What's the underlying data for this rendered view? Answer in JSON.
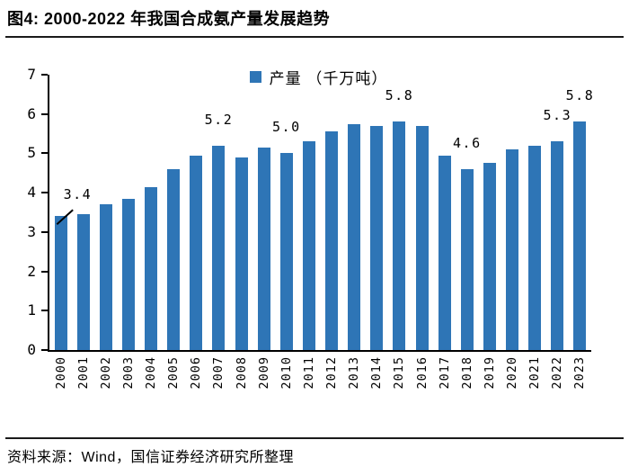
{
  "header": {
    "title": "图4: 2000-2022 年我国合成氨产量发展趋势"
  },
  "footer": {
    "source": "资料来源：Wind，国信证券经济研究所整理"
  },
  "chart_data": {
    "type": "bar",
    "title": "图4: 2000-2022 年我国合成氨产量发展趋势",
    "legend_label": "产量 （千万吨）",
    "legend_position": "top-center",
    "categories": [
      "2000",
      "2001",
      "2002",
      "2003",
      "2004",
      "2005",
      "2006",
      "2007",
      "2008",
      "2009",
      "2010",
      "2011",
      "2012",
      "2013",
      "2014",
      "2015",
      "2016",
      "2017",
      "2018",
      "2019",
      "2020",
      "2021",
      "2022",
      "2023"
    ],
    "values": [
      3.4,
      3.45,
      3.7,
      3.85,
      4.15,
      4.6,
      4.95,
      5.2,
      4.9,
      5.15,
      5.0,
      5.3,
      5.55,
      5.75,
      5.7,
      5.8,
      5.7,
      4.95,
      4.6,
      4.75,
      5.1,
      5.2,
      5.3,
      5.8
    ],
    "data_labels": {
      "2000": "3.4",
      "2007": "5.2",
      "2010": "5.0",
      "2015": "5.8",
      "2018": "4.6",
      "2022": "5.3",
      "2023": "5.8"
    },
    "callout_year": "2000",
    "xlabel": "",
    "ylabel": "",
    "ylim": [
      0,
      7
    ],
    "y_ticks": [
      0,
      1,
      2,
      3,
      4,
      5,
      6,
      7
    ],
    "grid": false,
    "bar_color": "#2E75B6",
    "axis_color": "#000000"
  }
}
